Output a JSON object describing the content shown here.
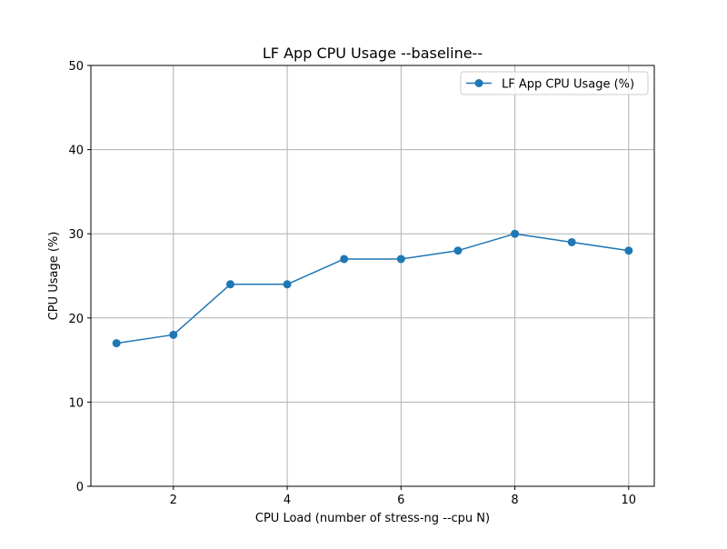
{
  "chart_data": {
    "type": "line",
    "title": "LF App CPU Usage --baseline--",
    "xlabel": "CPU Load (number of stress-ng --cpu N)",
    "ylabel": "CPU Usage (%)",
    "xlim": [
      0.55,
      10.45
    ],
    "ylim": [
      0,
      50
    ],
    "xticks": [
      2,
      4,
      6,
      8,
      10
    ],
    "yticks": [
      0,
      10,
      20,
      30,
      40,
      50
    ],
    "grid": true,
    "legend_position": "upper right",
    "series": [
      {
        "name": "LF App CPU Usage (%)",
        "color": "#1f77b4",
        "marker": "circle",
        "x": [
          1,
          2,
          3,
          4,
          5,
          6,
          7,
          8,
          9,
          10
        ],
        "y": [
          17,
          18,
          24,
          24,
          27,
          27,
          28,
          30,
          29,
          28
        ]
      }
    ]
  }
}
